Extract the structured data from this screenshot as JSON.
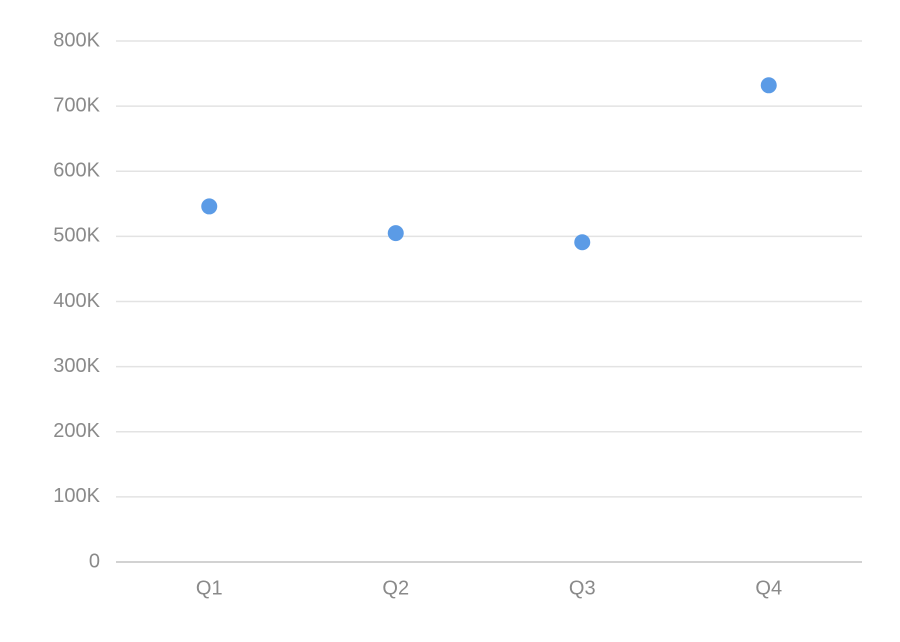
{
  "chart_data": {
    "type": "scatter",
    "categories": [
      "Q1",
      "Q2",
      "Q3",
      "Q4"
    ],
    "values": [
      546000,
      505000,
      491000,
      732000
    ],
    "color": "#5b9be6",
    "ylim": [
      0,
      800000
    ],
    "yticks": [
      0,
      {
        "value": 100000,
        "label": "100K"
      },
      {
        "value": 200000,
        "label": "200K"
      },
      {
        "value": 300000,
        "label": "300K"
      },
      {
        "value": 400000,
        "label": "400K"
      },
      {
        "value": 500000,
        "label": "500K"
      },
      {
        "value": 600000,
        "label": "600K"
      },
      {
        "value": 700000,
        "label": "700K"
      },
      {
        "value": 800000,
        "label": "800K"
      }
    ],
    "grid": true
  }
}
